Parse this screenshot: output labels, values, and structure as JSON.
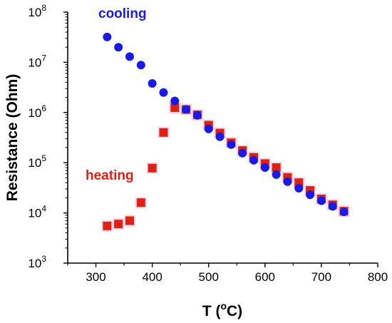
{
  "chart_data": {
    "type": "scatter",
    "xlabel": {
      "text": "T (",
      "sup": "o",
      "unit": "C)"
    },
    "ylabel": "Resistance (Ohm)",
    "xlim": [
      250,
      800
    ],
    "ylim": [
      1000,
      100000000
    ],
    "yscale": "log",
    "grid": false,
    "x_ticks": [
      300,
      400,
      500,
      600,
      700,
      800
    ],
    "x_tick_labels": [
      "300",
      "400",
      "500",
      "600",
      "700",
      "800"
    ],
    "y_ticks": [
      {
        "value": 1000,
        "base": "10",
        "exp": "3"
      },
      {
        "value": 10000,
        "base": "10",
        "exp": "4"
      },
      {
        "value": 100000,
        "base": "10",
        "exp": "5"
      },
      {
        "value": 1000000,
        "base": "10",
        "exp": "6"
      },
      {
        "value": 10000000,
        "base": "10",
        "exp": "7"
      },
      {
        "value": 100000000,
        "base": "10",
        "exp": "8"
      }
    ],
    "series": [
      {
        "name": "cooling",
        "marker": "circle",
        "color": "#1a1ae6",
        "x": [
          320,
          340,
          360,
          380,
          400,
          420,
          440,
          460,
          480,
          500,
          520,
          540,
          560,
          580,
          600,
          620,
          640,
          660,
          680,
          700,
          720,
          740
        ],
        "y": [
          32000000,
          20000000,
          13000000,
          8800000,
          3800000,
          2500000,
          1700000,
          1150000,
          880000,
          470000,
          330000,
          230000,
          155000,
          112000,
          80000,
          58000,
          42000,
          31000,
          23000,
          17500,
          13500,
          10500
        ]
      },
      {
        "name": "heating",
        "marker": "square",
        "color": "#dd2211",
        "x": [
          320,
          340,
          360,
          380,
          400,
          420,
          440,
          460,
          480,
          500,
          520,
          540,
          560,
          580,
          600,
          620,
          640,
          660,
          680,
          700,
          720,
          740
        ],
        "y": [
          5500,
          6000,
          7000,
          16000,
          78000,
          400000,
          1250000,
          1150000,
          900000,
          560000,
          390000,
          250000,
          175000,
          128000,
          96000,
          80000,
          51000,
          40000,
          28000,
          19000,
          14500,
          10800
        ]
      }
    ]
  }
}
